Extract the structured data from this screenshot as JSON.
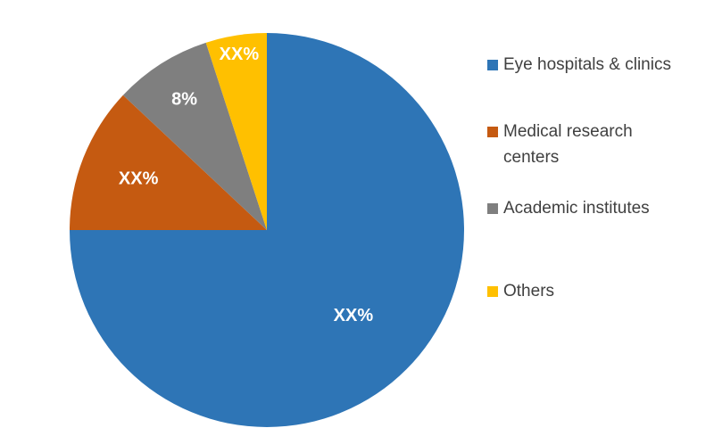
{
  "chart_data": {
    "type": "pie",
    "slices": [
      {
        "name": "Eye hospitals & clinics",
        "label": "XX%",
        "value": 75,
        "color": "#2e75b6"
      },
      {
        "name": "Medical research centers",
        "label": "XX%",
        "value": 12,
        "color": "#c55a11"
      },
      {
        "name": "Academic institutes",
        "label": "8%",
        "value": 8,
        "color": "#7f7f7f"
      },
      {
        "name": "Others",
        "label": "XX%",
        "value": 5,
        "color": "#ffc000"
      }
    ],
    "start_angle": "12 o'clock, clockwise",
    "legend_position": "right",
    "title": ""
  },
  "legend": {
    "items": [
      {
        "lines": [
          "Eye hospitals & clinics"
        ],
        "color": "#2e75b6"
      },
      {
        "lines": [
          "Medical research",
          "centers"
        ],
        "color": "#c55a11"
      },
      {
        "lines": [
          "Academic institutes"
        ],
        "color": "#7f7f7f"
      },
      {
        "lines": [
          "Others"
        ],
        "color": "#ffc000"
      }
    ]
  }
}
